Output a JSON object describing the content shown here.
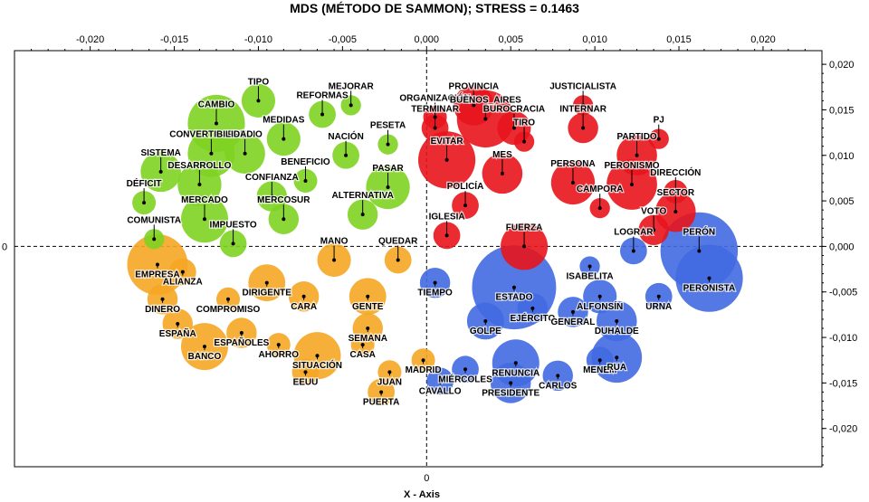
{
  "chart_data": {
    "type": "scatter",
    "title": "MDS (MÉTODO DE SAMMON); STRESS = 0.1463",
    "xlabel": "X - Axis",
    "ylabel": "",
    "xlim": [
      -0.0245,
      0.0235
    ],
    "ylim": [
      -0.0242,
      0.0215
    ],
    "x_ticks": [
      -0.02,
      -0.015,
      -0.01,
      -0.005,
      0,
      0.005,
      0.01,
      0.015,
      0.02
    ],
    "x_tick_labels": [
      "-0,020",
      "-0,015",
      "-0,010",
      "-0,005",
      "0,000",
      "0,005",
      "0,010",
      "0,015",
      "0,020"
    ],
    "y_ticks": [
      0.02,
      0.015,
      0.01,
      0.005,
      0,
      -0.005,
      -0.01,
      -0.015,
      -0.02
    ],
    "y_tick_labels": [
      "0,020",
      "0,015",
      "0,010",
      "0,005",
      "0,000",
      "-0,005",
      "-0,010",
      "-0,015",
      "-0,020"
    ],
    "x_zero_label": "0",
    "y_zero_label": "0",
    "grid": false,
    "reference_lines": "dashed at x=0 and y=0",
    "colors": {
      "green": "#7ed321",
      "red": "#e8141c",
      "orange": "#f5a623",
      "blue": "#4169e1"
    },
    "points": [
      {
        "label": "TIPO",
        "x": -0.01,
        "y": 0.016,
        "r": 0.001,
        "color": "green"
      },
      {
        "label": "MEJORAR",
        "x": -0.0045,
        "y": 0.0155,
        "r": 0.0006,
        "color": "green"
      },
      {
        "label": "REFORMAS",
        "x": -0.0062,
        "y": 0.0145,
        "r": 0.0008,
        "color": "green"
      },
      {
        "label": "CAMBIO",
        "x": -0.0125,
        "y": 0.0135,
        "r": 0.0017,
        "color": "green"
      },
      {
        "label": "MEDIDAS",
        "x": -0.0085,
        "y": 0.0118,
        "r": 0.001,
        "color": "green"
      },
      {
        "label": "PRECIO",
        "x": -0.0108,
        "y": 0.0102,
        "r": 0.0012,
        "color": "green"
      },
      {
        "label": "CONVERTIBILIDAD",
        "x": -0.0128,
        "y": 0.0102,
        "r": 0.0014,
        "color": "green"
      },
      {
        "label": "NACIÓN",
        "x": -0.0048,
        "y": 0.01,
        "r": 0.0008,
        "color": "green"
      },
      {
        "label": "PESETA",
        "x": -0.0023,
        "y": 0.0112,
        "r": 0.0006,
        "color": "green"
      },
      {
        "label": "SISTEMA",
        "x": -0.0158,
        "y": 0.0082,
        "r": 0.0012,
        "color": "green"
      },
      {
        "label": "BENEFICIO",
        "x": -0.0072,
        "y": 0.0072,
        "r": 0.0007,
        "color": "green"
      },
      {
        "label": "DESARROLLO",
        "x": -0.0135,
        "y": 0.0068,
        "r": 0.0013,
        "color": "green"
      },
      {
        "label": "PASAR",
        "x": -0.0023,
        "y": 0.0065,
        "r": 0.0013,
        "color": "green"
      },
      {
        "label": "DÉFICIT",
        "x": -0.0168,
        "y": 0.0048,
        "r": 0.0007,
        "color": "green"
      },
      {
        "label": "CONFIANZA",
        "x": -0.0092,
        "y": 0.0055,
        "r": 0.0009,
        "color": "green"
      },
      {
        "label": "MERCADO",
        "x": -0.0132,
        "y": 0.003,
        "r": 0.0014,
        "color": "green"
      },
      {
        "label": "ALTERNATIVA",
        "x": -0.0038,
        "y": 0.0035,
        "r": 0.0009,
        "color": "green"
      },
      {
        "label": "MERCOSUR",
        "x": -0.0085,
        "y": 0.003,
        "r": 0.0009,
        "color": "green"
      },
      {
        "label": "COMUNISTA",
        "x": -0.0162,
        "y": 0.0008,
        "r": 0.0006,
        "color": "green"
      },
      {
        "label": "IMPUESTO",
        "x": -0.0115,
        "y": 0.0003,
        "r": 0.0008,
        "color": "green"
      },
      {
        "label": "ORGANIZACIÓN",
        "x": 0.0005,
        "y": 0.0142,
        "r": 0.0007,
        "color": "red"
      },
      {
        "label": "PROVINCIA",
        "x": 0.0028,
        "y": 0.0155,
        "r": 0.0012,
        "color": "red"
      },
      {
        "label": "TERMINAR",
        "x": 0.0005,
        "y": 0.013,
        "r": 0.0008,
        "color": "red"
      },
      {
        "label": "BUENOS_AIRES",
        "x": 0.0035,
        "y": 0.014,
        "r": 0.0017,
        "color": "red"
      },
      {
        "label": "BUROCRACIA",
        "x": 0.0052,
        "y": 0.013,
        "r": 0.001,
        "color": "red"
      },
      {
        "label": "EVITAR",
        "x": 0.0012,
        "y": 0.0095,
        "r": 0.0017,
        "color": "red"
      },
      {
        "label": "TIRO",
        "x": 0.0058,
        "y": 0.0115,
        "r": 0.0006,
        "color": "red"
      },
      {
        "label": "MES",
        "x": 0.0045,
        "y": 0.008,
        "r": 0.0012,
        "color": "red"
      },
      {
        "label": "POLICÍA",
        "x": 0.0023,
        "y": 0.0045,
        "r": 0.0008,
        "color": "red"
      },
      {
        "label": "IGLESIA",
        "x": 0.0012,
        "y": 0.0012,
        "r": 0.0008,
        "color": "red"
      },
      {
        "label": "JUSTICIALISTA",
        "x": 0.0093,
        "y": 0.0155,
        "r": 0.0006,
        "color": "red"
      },
      {
        "label": "INTERNAR",
        "x": 0.0093,
        "y": 0.013,
        "r": 0.0009,
        "color": "red"
      },
      {
        "label": "PJ",
        "x": 0.0138,
        "y": 0.0118,
        "r": 0.0006,
        "color": "red"
      },
      {
        "label": "PARTIDO",
        "x": 0.0125,
        "y": 0.01,
        "r": 0.0012,
        "color": "red"
      },
      {
        "label": "PERSONA",
        "x": 0.0087,
        "y": 0.007,
        "r": 0.0013,
        "color": "red"
      },
      {
        "label": "PERONISMO",
        "x": 0.0122,
        "y": 0.0068,
        "r": 0.0015,
        "color": "red"
      },
      {
        "label": "DIRECCIÓN",
        "x": 0.0148,
        "y": 0.006,
        "r": 0.0007,
        "color": "red"
      },
      {
        "label": "CAMPORA",
        "x": 0.0103,
        "y": 0.0042,
        "r": 0.0006,
        "color": "red"
      },
      {
        "label": "SECTOR",
        "x": 0.0148,
        "y": 0.0038,
        "r": 0.0012,
        "color": "red"
      },
      {
        "label": "VOTO",
        "x": 0.0135,
        "y": 0.0018,
        "r": 0.0009,
        "color": "red"
      },
      {
        "label": "FUERZA",
        "x": 0.0058,
        "y": 0.0,
        "r": 0.0014,
        "color": "red"
      },
      {
        "label": "EMPRESA",
        "x": -0.016,
        "y": -0.002,
        "r": 0.0018,
        "color": "orange"
      },
      {
        "label": "ALIANZA",
        "x": -0.0145,
        "y": -0.0028,
        "r": 0.0008,
        "color": "orange"
      },
      {
        "label": "DINERO",
        "x": -0.0157,
        "y": -0.0058,
        "r": 0.0009,
        "color": "orange"
      },
      {
        "label": "ESPAÑA",
        "x": -0.0148,
        "y": -0.0085,
        "r": 0.0009,
        "color": "orange"
      },
      {
        "label": "BANCO",
        "x": -0.0132,
        "y": -0.011,
        "r": 0.0014,
        "color": "orange"
      },
      {
        "label": "DIRIGENTE",
        "x": -0.0095,
        "y": -0.004,
        "r": 0.0011,
        "color": "orange"
      },
      {
        "label": "COMPROMISO",
        "x": -0.0118,
        "y": -0.0058,
        "r": 0.0007,
        "color": "orange"
      },
      {
        "label": "ESPAÑOLES",
        "x": -0.011,
        "y": -0.0095,
        "r": 0.0009,
        "color": "orange"
      },
      {
        "label": "AHORRO",
        "x": -0.0088,
        "y": -0.0108,
        "r": 0.0007,
        "color": "orange"
      },
      {
        "label": "CARA",
        "x": -0.0073,
        "y": -0.0055,
        "r": 0.0009,
        "color": "orange"
      },
      {
        "label": "MANO",
        "x": -0.0055,
        "y": -0.0015,
        "r": 0.001,
        "color": "orange"
      },
      {
        "label": "QUEDAR",
        "x": -0.0017,
        "y": -0.0015,
        "r": 0.0008,
        "color": "orange"
      },
      {
        "label": "GENTE",
        "x": -0.0035,
        "y": -0.0055,
        "r": 0.0011,
        "color": "orange"
      },
      {
        "label": "SEMANA",
        "x": -0.0035,
        "y": -0.009,
        "r": 0.0009,
        "color": "orange"
      },
      {
        "label": "CASA",
        "x": -0.0038,
        "y": -0.0108,
        "r": 0.0007,
        "color": "orange"
      },
      {
        "label": "SITUACIÓN",
        "x": -0.0065,
        "y": -0.012,
        "r": 0.0014,
        "color": "orange"
      },
      {
        "label": "EEUU",
        "x": -0.0072,
        "y": -0.0138,
        "r": 0.0008,
        "color": "orange"
      },
      {
        "label": "MADRID",
        "x": -0.0002,
        "y": -0.0125,
        "r": 0.0007,
        "color": "orange"
      },
      {
        "label": "JUAN",
        "x": -0.0022,
        "y": -0.0138,
        "r": 0.0007,
        "color": "orange"
      },
      {
        "label": "PUERTA",
        "x": -0.0027,
        "y": -0.016,
        "r": 0.0008,
        "color": "orange"
      },
      {
        "label": "TIEMPO",
        "x": 0.0005,
        "y": -0.004,
        "r": 0.0009,
        "color": "blue"
      },
      {
        "label": "ESTADO",
        "x": 0.0052,
        "y": -0.0045,
        "r": 0.0025,
        "color": "blue"
      },
      {
        "label": "GOLPE",
        "x": 0.0035,
        "y": -0.0082,
        "r": 0.0011,
        "color": "blue"
      },
      {
        "label": "EJÉRCITO",
        "x": 0.0063,
        "y": -0.0068,
        "r": 0.0009,
        "color": "blue"
      },
      {
        "label": "CAVALLO",
        "x": 0.0008,
        "y": -0.0148,
        "r": 0.0008,
        "color": "blue"
      },
      {
        "label": "MIÉRCOLES",
        "x": 0.0023,
        "y": -0.0135,
        "r": 0.0008,
        "color": "blue"
      },
      {
        "label": "RENUNCIA",
        "x": 0.0053,
        "y": -0.0128,
        "r": 0.0014,
        "color": "blue"
      },
      {
        "label": "PRESIDENTE",
        "x": 0.005,
        "y": -0.015,
        "r": 0.0012,
        "color": "blue"
      },
      {
        "label": "CARLOS",
        "x": 0.0078,
        "y": -0.0142,
        "r": 0.0009,
        "color": "blue"
      },
      {
        "label": "LOGRAR",
        "x": 0.0123,
        "y": -0.0005,
        "r": 0.0008,
        "color": "blue"
      },
      {
        "label": "ISABELITA",
        "x": 0.0097,
        "y": -0.0022,
        "r": 0.0006,
        "color": "blue"
      },
      {
        "label": "ALFONSÍN",
        "x": 0.0103,
        "y": -0.0055,
        "r": 0.001,
        "color": "blue"
      },
      {
        "label": "GENERAL",
        "x": 0.0087,
        "y": -0.0072,
        "r": 0.0009,
        "color": "blue"
      },
      {
        "label": "DUHALDE",
        "x": 0.0113,
        "y": -0.0082,
        "r": 0.0012,
        "color": "blue"
      },
      {
        "label": "URNA",
        "x": 0.0138,
        "y": -0.0055,
        "r": 0.0008,
        "color": "blue"
      },
      {
        "label": "PERÓN",
        "x": 0.0162,
        "y": -0.0005,
        "r": 0.0023,
        "color": "blue"
      },
      {
        "label": "PERONISTA",
        "x": 0.0168,
        "y": -0.0035,
        "r": 0.002,
        "color": "blue"
      },
      {
        "label": "MENEM",
        "x": 0.0103,
        "y": -0.0125,
        "r": 0.0008,
        "color": "blue"
      },
      {
        "label": "RUA",
        "x": 0.0113,
        "y": -0.0122,
        "r": 0.0015,
        "color": "blue"
      }
    ]
  }
}
